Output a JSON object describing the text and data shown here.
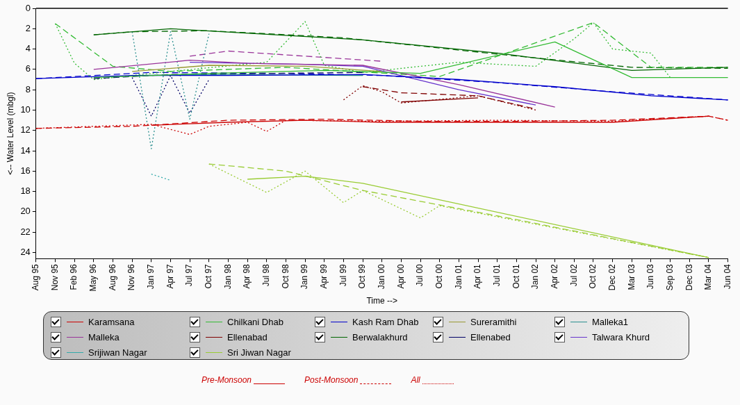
{
  "chart_data": {
    "type": "line",
    "xlabel": "Time -->",
    "ylabel": "<-- Water Level (mbgl)",
    "categories": [
      "Aug 95",
      "Nov 95",
      "Feb 96",
      "May 96",
      "Aug 96",
      "Nov 96",
      "Jan 97",
      "Apr 97",
      "Jul 97",
      "Oct 97",
      "Jan 98",
      "Apr 98",
      "Jul 98",
      "Oct 98",
      "Jan 99",
      "Apr 99",
      "Jul 99",
      "Oct 99",
      "Jan 00",
      "Apr 00",
      "Jul 00",
      "Oct 00",
      "Jan 01",
      "Apr 01",
      "Jul 01",
      "Oct 01",
      "Jan 02",
      "Apr 02",
      "Jul 02",
      "Oct 02",
      "Dec 02",
      "Mar 03",
      "Jun 03",
      "Sep 03",
      "Dec 03",
      "Mar 04",
      "Jun 04"
    ],
    "ylim": [
      24.6,
      0
    ],
    "yticks": [
      0,
      2,
      4,
      6,
      8,
      10,
      12,
      14,
      16,
      18,
      20,
      22,
      24
    ],
    "grid": false,
    "legend": "bottom",
    "annotations": [
      "Pre-Monsoon",
      "Post-Monsoon",
      "All"
    ],
    "series": [
      {
        "name": "Karamsana",
        "color": "#cc0000",
        "line_style": "solid",
        "values": [
          null,
          null,
          null,
          null,
          null,
          null,
          11.5,
          null,
          null,
          null,
          11.2,
          null,
          null,
          null,
          11.0,
          null,
          null,
          null,
          11.2,
          null,
          null,
          null,
          null,
          null,
          11.2,
          null,
          null,
          null,
          null,
          null,
          11.2,
          null,
          null,
          null,
          null,
          10.6,
          null
        ]
      },
      {
        "name": "Chilkani Dhab",
        "color": "#33bb33",
        "line_style": "solid",
        "values": [
          null,
          null,
          null,
          6.8,
          null,
          null,
          null,
          null,
          null,
          6.4,
          null,
          null,
          null,
          null,
          null,
          6.1,
          null,
          null,
          null,
          null,
          6.4,
          null,
          null,
          null,
          null,
          null,
          null,
          3.3,
          null,
          null,
          null,
          6.8,
          null,
          null,
          null,
          null,
          6.8
        ]
      },
      {
        "name": "Kash Ram Dhab",
        "color": "#0000cc",
        "line_style": "solid",
        "values": [
          6.9,
          null,
          null,
          null,
          null,
          6.6,
          null,
          null,
          null,
          null,
          6.6,
          null,
          null,
          null,
          null,
          null,
          null,
          6.5,
          null,
          null,
          null,
          null,
          7.0,
          null,
          null,
          null,
          null,
          7.7,
          null,
          null,
          null,
          null,
          8.6,
          null,
          null,
          null,
          9.0
        ]
      },
      {
        "name": "Sureramithi",
        "color": "#999933",
        "line_style": "solid",
        "values": [
          null,
          null,
          null,
          null,
          null,
          6.2,
          null,
          null,
          null,
          5.6,
          null,
          null,
          null,
          null,
          5.7,
          null,
          null,
          null,
          6.2,
          null,
          null,
          null,
          null,
          null,
          null,
          null,
          null,
          null,
          null,
          null,
          null,
          null,
          null,
          null,
          null,
          null,
          null
        ]
      },
      {
        "name": "Malleka1",
        "color": "#2a8f8f",
        "line_style": "solid",
        "values": [
          null,
          null,
          null,
          null,
          null,
          6.6,
          null,
          null,
          null,
          null,
          6.5,
          null,
          null,
          null,
          null,
          null,
          null,
          6.6,
          null,
          null,
          null,
          null,
          null,
          null,
          null,
          null,
          null,
          null,
          null,
          null,
          null,
          null,
          null,
          null,
          null,
          null,
          null
        ]
      },
      {
        "name": "Malleka",
        "color": "#993399",
        "line_style": "solid",
        "values": [
          null,
          null,
          null,
          6.0,
          null,
          null,
          null,
          null,
          5.1,
          null,
          null,
          5.4,
          null,
          null,
          null,
          null,
          null,
          5.6,
          null,
          null,
          null,
          null,
          7.5,
          null,
          null,
          null,
          null,
          9.7,
          null,
          null,
          null,
          null,
          null,
          null,
          null,
          null,
          null
        ]
      },
      {
        "name": "Ellenabad",
        "color": "#800000",
        "line_style": "solid",
        "values": [
          null,
          null,
          null,
          null,
          null,
          null,
          null,
          null,
          null,
          null,
          null,
          null,
          null,
          null,
          null,
          null,
          null,
          null,
          null,
          9.2,
          null,
          null,
          null,
          8.8,
          null,
          null,
          null,
          null,
          null,
          null,
          null,
          null,
          null,
          null,
          null,
          null,
          null
        ]
      },
      {
        "name": "Berwalakhurd",
        "color": "#006600",
        "line_style": "solid",
        "values": [
          null,
          null,
          null,
          2.6,
          null,
          null,
          null,
          2.0,
          null,
          null,
          null,
          null,
          null,
          null,
          null,
          null,
          null,
          3.1,
          null,
          null,
          null,
          null,
          null,
          null,
          4.4,
          null,
          null,
          null,
          null,
          null,
          null,
          6.1,
          null,
          null,
          null,
          null,
          5.8
        ]
      },
      {
        "name": "Ellenabed",
        "color": "#000066",
        "line_style": "dashed",
        "values": [
          null,
          null,
          null,
          6.9,
          null,
          null,
          null,
          6.5,
          null,
          null,
          null,
          null,
          6.4,
          null,
          null,
          null,
          null,
          6.3,
          null,
          null,
          null,
          null,
          null,
          null,
          null,
          null,
          null,
          null,
          null,
          null,
          null,
          null,
          null,
          null,
          null,
          null,
          null
        ]
      },
      {
        "name": "Talwara Khurd",
        "color": "#6633cc",
        "line_style": "solid",
        "values": [
          null,
          null,
          null,
          null,
          null,
          null,
          null,
          null,
          5.3,
          null,
          null,
          null,
          null,
          null,
          5.5,
          null,
          null,
          5.7,
          null,
          null,
          null,
          null,
          8.0,
          null,
          null,
          null,
          9.5,
          null,
          null,
          null,
          null,
          null,
          null,
          null,
          null,
          null,
          null
        ]
      },
      {
        "name": "Srijiwan Nagar",
        "color": "#33aaaa",
        "line_style": "dotted",
        "values": [
          null,
          null,
          null,
          null,
          null,
          null,
          16.3,
          16.9,
          null,
          null,
          null,
          null,
          null,
          null,
          null,
          null,
          null,
          null,
          null,
          null,
          null,
          null,
          null,
          null,
          null,
          null,
          null,
          null,
          null,
          null,
          null,
          null,
          null,
          null,
          null,
          null,
          null
        ]
      },
      {
        "name": "Sri Jiwan Nagar",
        "color": "#99cc33",
        "line_style": "solid",
        "values": [
          null,
          null,
          null,
          null,
          null,
          null,
          null,
          null,
          null,
          null,
          null,
          16.8,
          null,
          null,
          16.5,
          null,
          null,
          17.2,
          null,
          null,
          null,
          null,
          null,
          null,
          null,
          null,
          null,
          null,
          null,
          null,
          null,
          null,
          null,
          null,
          null,
          24.5,
          null
        ]
      },
      {
        "color": "#cc0000",
        "line_style": "dashed",
        "values": [
          11.8,
          null,
          null,
          null,
          null,
          11.6,
          null,
          null,
          null,
          null,
          11.0,
          null,
          null,
          null,
          null,
          10.9,
          null,
          null,
          null,
          null,
          11.1,
          null,
          null,
          null,
          null,
          11.1,
          null,
          null,
          null,
          null,
          11.0,
          null,
          null,
          null,
          null,
          10.6,
          11.0
        ]
      },
      {
        "color": "#cc0000",
        "line_style": "dotted",
        "values": [
          11.8,
          null,
          null,
          11.6,
          null,
          null,
          11.4,
          null,
          12.4,
          11.6,
          null,
          11.2,
          12.1,
          11.0,
          null,
          null,
          null,
          null,
          11.1,
          null,
          null,
          null,
          null,
          null,
          11.0,
          null,
          null,
          null,
          null,
          null,
          11.1,
          null,
          null,
          null,
          null,
          10.6,
          11.0
        ]
      },
      {
        "color": "#33bb33",
        "line_style": "dashed",
        "values": [
          null,
          1.5,
          null,
          null,
          5.7,
          null,
          null,
          6.2,
          null,
          null,
          null,
          null,
          null,
          5.8,
          null,
          null,
          null,
          null,
          null,
          null,
          null,
          6.7,
          null,
          null,
          null,
          null,
          null,
          null,
          null,
          1.4,
          null,
          null,
          5.8,
          null,
          null,
          null,
          5.8
        ]
      },
      {
        "color": "#33bb33",
        "line_style": "dotted",
        "values": [
          null,
          1.5,
          5.4,
          7.0,
          null,
          null,
          null,
          6.2,
          null,
          null,
          null,
          null,
          5.3,
          null,
          1.3,
          5.6,
          null,
          6.3,
          null,
          null,
          null,
          null,
          5.3,
          null,
          null,
          null,
          5.7,
          null,
          3.0,
          1.4,
          4.0,
          null,
          4.4,
          6.8,
          null,
          null,
          null
        ]
      },
      {
        "color": "#0000cc",
        "line_style": "dashed",
        "values": [
          6.9,
          null,
          null,
          null,
          null,
          null,
          6.3,
          null,
          null,
          null,
          null,
          null,
          null,
          6.4,
          null,
          null,
          null,
          null,
          6.6,
          null,
          null,
          null,
          null,
          null,
          7.3,
          null,
          null,
          null,
          null,
          null,
          8.2,
          null,
          null,
          null,
          null,
          null,
          9.0
        ]
      },
      {
        "color": "#2a8f8f",
        "line_style": "dotted",
        "values": [
          null,
          null,
          null,
          null,
          null,
          2.3,
          13.8,
          2.3,
          10.9,
          2.5,
          null,
          null,
          null,
          null,
          null,
          null,
          null,
          null,
          null,
          null,
          null,
          null,
          null,
          null,
          null,
          null,
          null,
          null,
          null,
          null,
          null,
          null,
          null,
          null,
          null,
          null,
          null
        ]
      },
      {
        "color": "#993399",
        "line_style": "dashed",
        "values": [
          null,
          null,
          null,
          null,
          null,
          null,
          null,
          null,
          4.7,
          null,
          4.2,
          null,
          null,
          null,
          4.7,
          null,
          null,
          null,
          5.2,
          null,
          null,
          null,
          null,
          null,
          null,
          null,
          null,
          null,
          null,
          null,
          null,
          null,
          null,
          null,
          null,
          null,
          null
        ]
      },
      {
        "color": "#800000",
        "line_style": "dashed",
        "values": [
          null,
          null,
          null,
          null,
          null,
          null,
          null,
          null,
          null,
          null,
          null,
          null,
          null,
          null,
          null,
          null,
          null,
          7.7,
          null,
          8.3,
          null,
          null,
          null,
          8.6,
          null,
          null,
          9.9,
          null,
          null,
          null,
          null,
          null,
          null,
          null,
          null,
          null,
          null
        ]
      },
      {
        "color": "#800000",
        "line_style": "dotted",
        "values": [
          null,
          null,
          null,
          null,
          null,
          null,
          null,
          null,
          null,
          null,
          null,
          null,
          null,
          null,
          null,
          null,
          9.0,
          7.6,
          8.2,
          9.3,
          null,
          null,
          null,
          8.6,
          null,
          null,
          10.0,
          null,
          null,
          null,
          null,
          null,
          null,
          null,
          null,
          null,
          null
        ]
      },
      {
        "color": "#006600",
        "line_style": "dashed",
        "values": [
          null,
          null,
          null,
          2.6,
          null,
          2.3,
          null,
          null,
          null,
          2.2,
          null,
          null,
          null,
          null,
          null,
          null,
          2.9,
          null,
          null,
          null,
          null,
          null,
          null,
          null,
          4.5,
          null,
          null,
          null,
          null,
          null,
          null,
          5.8,
          null,
          null,
          null,
          null,
          5.9
        ]
      },
      {
        "color": "#000066",
        "line_style": "dotted",
        "values": [
          null,
          null,
          null,
          null,
          null,
          6.8,
          10.6,
          6.6,
          10.3,
          7.0,
          null,
          null,
          null,
          null,
          null,
          null,
          null,
          null,
          null,
          null,
          null,
          null,
          null,
          null,
          null,
          null,
          null,
          null,
          null,
          null,
          null,
          null,
          null,
          null,
          null,
          null,
          null
        ]
      },
      {
        "color": "#99cc33",
        "line_style": "dashed",
        "values": [
          null,
          null,
          null,
          null,
          null,
          null,
          null,
          null,
          null,
          15.3,
          null,
          null,
          null,
          16.0,
          null,
          null,
          null,
          17.9,
          null,
          null,
          null,
          null,
          null,
          null,
          20.4,
          null,
          null,
          null,
          null,
          null,
          null,
          null,
          null,
          null,
          null,
          24.5,
          null
        ]
      },
      {
        "color": "#99cc33",
        "line_style": "dotted",
        "values": [
          null,
          null,
          null,
          null,
          null,
          null,
          null,
          null,
          null,
          15.3,
          null,
          null,
          18.1,
          null,
          16.0,
          null,
          19.1,
          17.9,
          null,
          null,
          20.6,
          19.4,
          null,
          null,
          null,
          null,
          null,
          null,
          null,
          null,
          null,
          null,
          null,
          null,
          null,
          24.5,
          null
        ]
      }
    ]
  }
}
